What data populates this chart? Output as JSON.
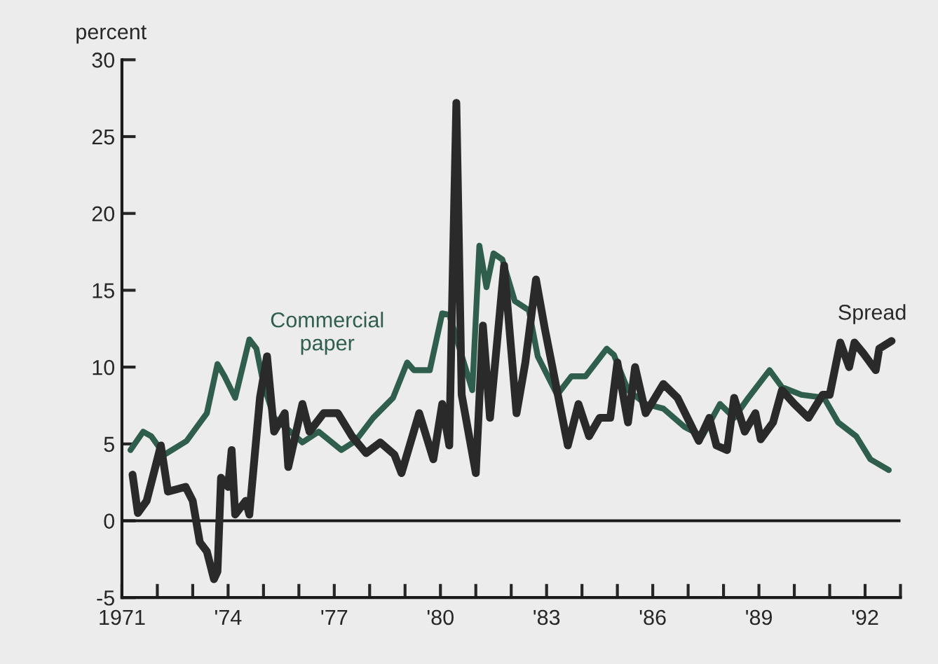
{
  "chart_data": {
    "type": "line",
    "ylabel": "percent",
    "xlim": [
      1971,
      1993
    ],
    "ylim": [
      -5,
      30
    ],
    "yticks": [
      -5,
      0,
      5,
      10,
      15,
      20,
      25,
      30
    ],
    "xticks": [
      1971,
      {
        "value": 1972,
        "label": null
      },
      {
        "value": 1973,
        "label": null
      },
      {
        "value": 1974,
        "label": "'74"
      },
      {
        "value": 1975,
        "label": null
      },
      {
        "value": 1976,
        "label": null
      },
      {
        "value": 1977,
        "label": "'77"
      },
      {
        "value": 1978,
        "label": null
      },
      {
        "value": 1979,
        "label": null
      },
      {
        "value": 1980,
        "label": "'80"
      },
      {
        "value": 1981,
        "label": null
      },
      {
        "value": 1982,
        "label": null
      },
      {
        "value": 1983,
        "label": "'83"
      },
      {
        "value": 1984,
        "label": null
      },
      {
        "value": 1985,
        "label": null
      },
      {
        "value": 1986,
        "label": "'86"
      },
      {
        "value": 1987,
        "label": null
      },
      {
        "value": 1988,
        "label": null
      },
      {
        "value": 1989,
        "label": "'89"
      },
      {
        "value": 1990,
        "label": null
      },
      {
        "value": 1991,
        "label": null
      },
      {
        "value": 1992,
        "label": "'92"
      },
      {
        "value": 1993,
        "label": null
      }
    ],
    "grid": false,
    "legend": false,
    "line_style": "solid",
    "marker": "none",
    "ref_lines": [
      {
        "axis": "y",
        "value": 0,
        "color": "#1a1a1a"
      }
    ],
    "series": [
      {
        "name": "Commercial paper",
        "color": "#2f5e4c",
        "x": [
          1971.24,
          1971.6,
          1971.83,
          1972.2,
          1972.83,
          1973.4,
          1973.7,
          1973.9,
          1974.2,
          1974.6,
          1974.8,
          1975.0,
          1975.3,
          1975.76,
          1976.1,
          1976.56,
          1977.2,
          1977.6,
          1978.1,
          1978.66,
          1979.06,
          1979.25,
          1979.7,
          1980.05,
          1980.25,
          1980.9,
          1981.1,
          1981.3,
          1981.5,
          1981.75,
          1982.1,
          1982.5,
          1982.75,
          1983.3,
          1983.7,
          1984.1,
          1984.7,
          1984.9,
          1985.3,
          1985.8,
          1986.3,
          1986.9,
          1987.4,
          1987.9,
          1988.3,
          1988.7,
          1989.3,
          1989.65,
          1990.2,
          1990.84,
          1991.24,
          1991.75,
          1992.15,
          1992.67
        ],
        "values": [
          4.6,
          5.8,
          5.5,
          4.3,
          5.2,
          7.0,
          10.2,
          9.4,
          8.0,
          11.8,
          11.2,
          8.9,
          6.7,
          5.8,
          5.1,
          5.8,
          4.6,
          5.2,
          6.7,
          8.0,
          10.3,
          9.8,
          9.8,
          13.5,
          13.4,
          8.5,
          17.9,
          15.2,
          17.4,
          17.0,
          14.3,
          13.7,
          10.7,
          8.2,
          9.4,
          9.4,
          11.2,
          10.8,
          8.5,
          7.6,
          7.3,
          6.1,
          5.5,
          7.6,
          6.7,
          8.0,
          9.8,
          8.7,
          8.2,
          8.0,
          6.4,
          5.5,
          4.0,
          3.3
        ]
      },
      {
        "name": "Spread",
        "color": "#2a2a2a",
        "x": [
          1971.3,
          1971.45,
          1971.7,
          1972.1,
          1972.3,
          1972.8,
          1973.0,
          1973.2,
          1973.4,
          1973.6,
          1973.7,
          1973.8,
          1974.0,
          1974.1,
          1974.2,
          1974.5,
          1974.6,
          1974.9,
          1975.1,
          1975.3,
          1975.6,
          1975.7,
          1976.1,
          1976.3,
          1976.7,
          1977.1,
          1977.5,
          1977.9,
          1978.3,
          1978.7,
          1978.9,
          1979.4,
          1979.8,
          1980.05,
          1980.25,
          1980.35,
          1980.45,
          1980.6,
          1981.0,
          1981.2,
          1981.4,
          1981.6,
          1981.8,
          1982.15,
          1982.4,
          1982.7,
          1982.95,
          1983.6,
          1983.9,
          1984.2,
          1984.5,
          1984.8,
          1985.0,
          1985.3,
          1985.5,
          1985.8,
          1986.3,
          1986.7,
          1987.3,
          1987.6,
          1987.8,
          1988.1,
          1988.3,
          1988.6,
          1988.9,
          1989.05,
          1989.4,
          1989.65,
          1990.0,
          1990.4,
          1990.8,
          1991.0,
          1991.3,
          1991.55,
          1991.7,
          1991.95,
          1992.3,
          1992.4,
          1992.75
        ],
        "values": [
          3.0,
          0.5,
          1.3,
          4.9,
          1.9,
          2.2,
          1.3,
          -1.4,
          -2.0,
          -3.8,
          -3.3,
          2.8,
          2.2,
          4.6,
          0.4,
          1.3,
          0.4,
          8.0,
          10.7,
          5.8,
          7.0,
          3.5,
          7.6,
          5.8,
          7.0,
          7.0,
          5.5,
          4.4,
          5.1,
          4.3,
          3.1,
          7.0,
          4.0,
          7.6,
          4.9,
          16.4,
          27.2,
          8.2,
          3.1,
          12.7,
          6.7,
          11.6,
          16.6,
          7.0,
          10.3,
          15.7,
          12.5,
          4.9,
          7.6,
          5.5,
          6.7,
          6.7,
          10.3,
          6.4,
          10.0,
          7.0,
          8.9,
          8.0,
          5.2,
          6.7,
          4.9,
          4.6,
          8.0,
          5.8,
          7.0,
          5.3,
          6.4,
          8.5,
          7.6,
          6.7,
          8.2,
          8.2,
          11.6,
          10.0,
          11.6,
          10.9,
          9.8,
          11.2,
          11.7
        ]
      }
    ]
  }
}
